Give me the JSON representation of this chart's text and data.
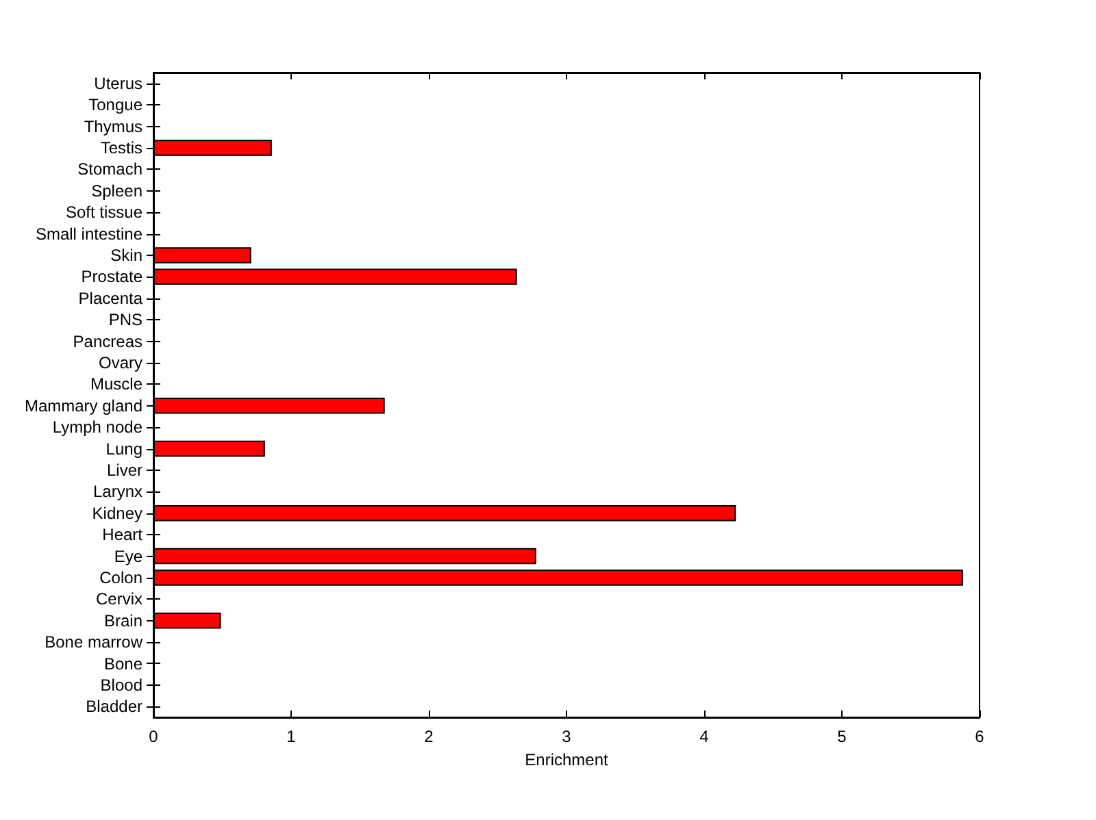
{
  "chart_data": {
    "type": "bar",
    "orientation": "horizontal",
    "xlabel": "Enrichment",
    "categories": [
      "Uterus",
      "Tongue",
      "Thymus",
      "Testis",
      "Stomach",
      "Spleen",
      "Soft tissue",
      "Small intestine",
      "Skin",
      "Prostate",
      "Placenta",
      "PNS",
      "Pancreas",
      "Ovary",
      "Muscle",
      "Mammary gland",
      "Lymph node",
      "Lung",
      "Liver",
      "Larynx",
      "Kidney",
      "Heart",
      "Eye",
      "Colon",
      "Cervix",
      "Brain",
      "Bone marrow",
      "Bone",
      "Blood",
      "Bladder"
    ],
    "values": [
      0,
      0,
      0,
      0.86,
      0,
      0,
      0,
      0,
      0.71,
      2.64,
      0,
      0,
      0,
      0,
      0,
      1.68,
      0,
      0.81,
      0,
      0,
      4.23,
      0,
      2.78,
      5.88,
      0,
      0.49,
      0,
      0,
      0,
      0
    ],
    "color": "#ff0000",
    "xlim": [
      0,
      6
    ],
    "xticks": [
      0,
      1,
      2,
      3,
      4,
      5,
      6
    ]
  }
}
